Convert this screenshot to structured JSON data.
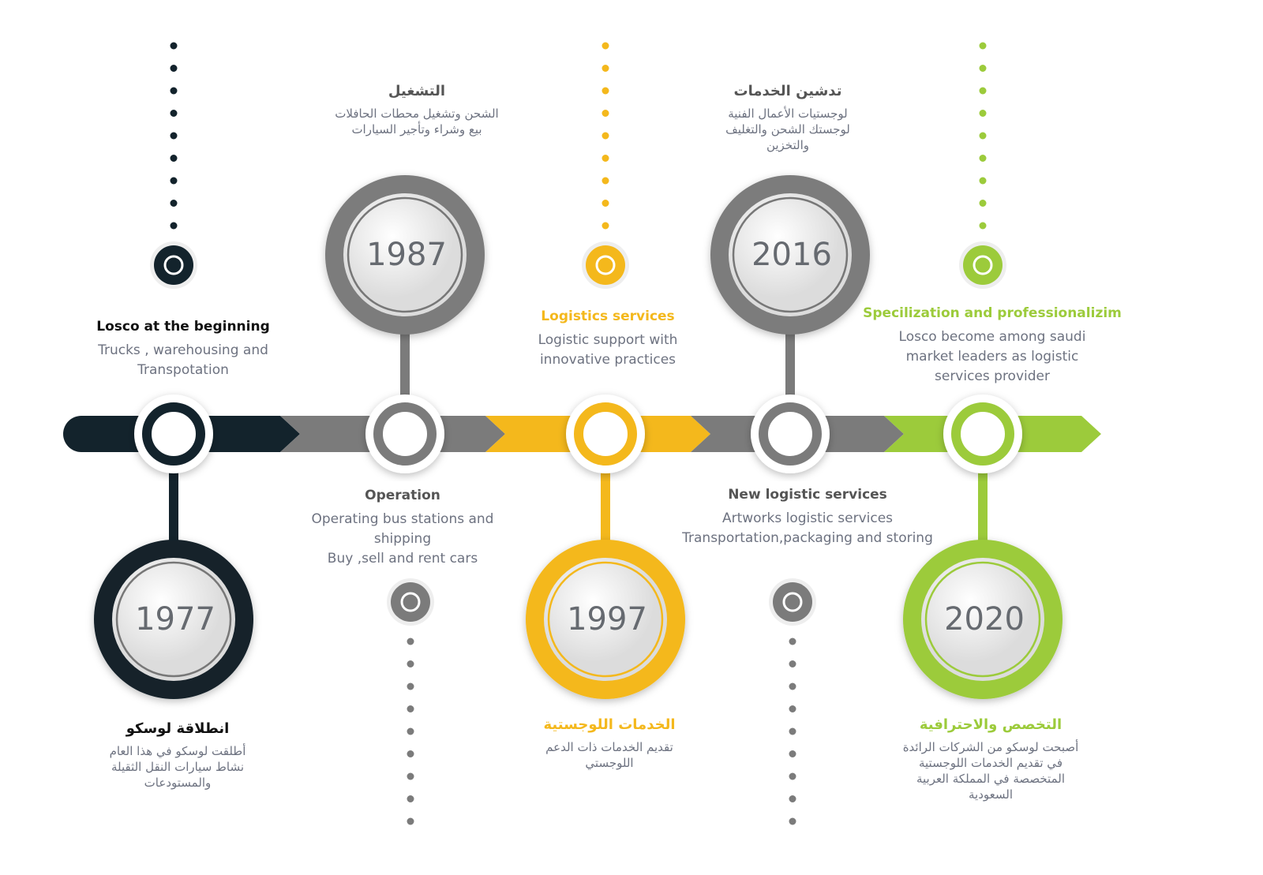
{
  "colors": {
    "dark": "#13232c",
    "gray": "#7b7b7b",
    "yellow": "#f4b81c",
    "green": "#9ccb3b"
  },
  "milestones": [
    {
      "year": "1977",
      "en_title": "Losco at the beginning",
      "en_desc": [
        "Trucks , warehousing and",
        "Transpotation"
      ],
      "ar_title": "انطلاقة لوسكو",
      "ar_desc": [
        "أطلقت لوسكو في هذا العام",
        "نشاط سيارات النقل الثقيلة",
        "والمستودعات"
      ]
    },
    {
      "year": "1987",
      "en_title": "Operation",
      "en_desc": [
        "Operating bus stations and",
        "shipping",
        "Buy ,sell and rent cars"
      ],
      "ar_title": "التشغيل",
      "ar_desc": [
        "الشحن وتشغيل محطات الحافلات",
        "بيع وشراء وتأجير السيارات"
      ]
    },
    {
      "year": "1997",
      "en_title": "Logistics services",
      "en_desc": [
        "Logistic support  with",
        "innovative practices"
      ],
      "ar_title": "الخدمات اللوجستية",
      "ar_desc": [
        "تقديم الخدمات ذات الدعم",
        "اللوجستي"
      ]
    },
    {
      "year": "2016",
      "en_title": "New logistic services",
      "en_desc": [
        "Artworks logistic services",
        "Transportation,packaging and storing"
      ],
      "ar_title": "تدشين الخدمات",
      "ar_desc": [
        "لوجستيات الأعمال الفنية",
        "لوجستك  الشحن والتغليف",
        "والتخزين"
      ]
    },
    {
      "year": "2020",
      "en_title": "Specilization and professionalizim",
      "en_desc": [
        "Losco become among saudi",
        "market  leaders as logistic",
        "services provider"
      ],
      "ar_title": "التخصص والاحترافية",
      "ar_desc": [
        "أصبحت لوسكو من الشركات الرائدة",
        "في تقديم الخدمات اللوجستية",
        "المتخصصة في المملكة العربية",
        "السعودية"
      ]
    }
  ]
}
